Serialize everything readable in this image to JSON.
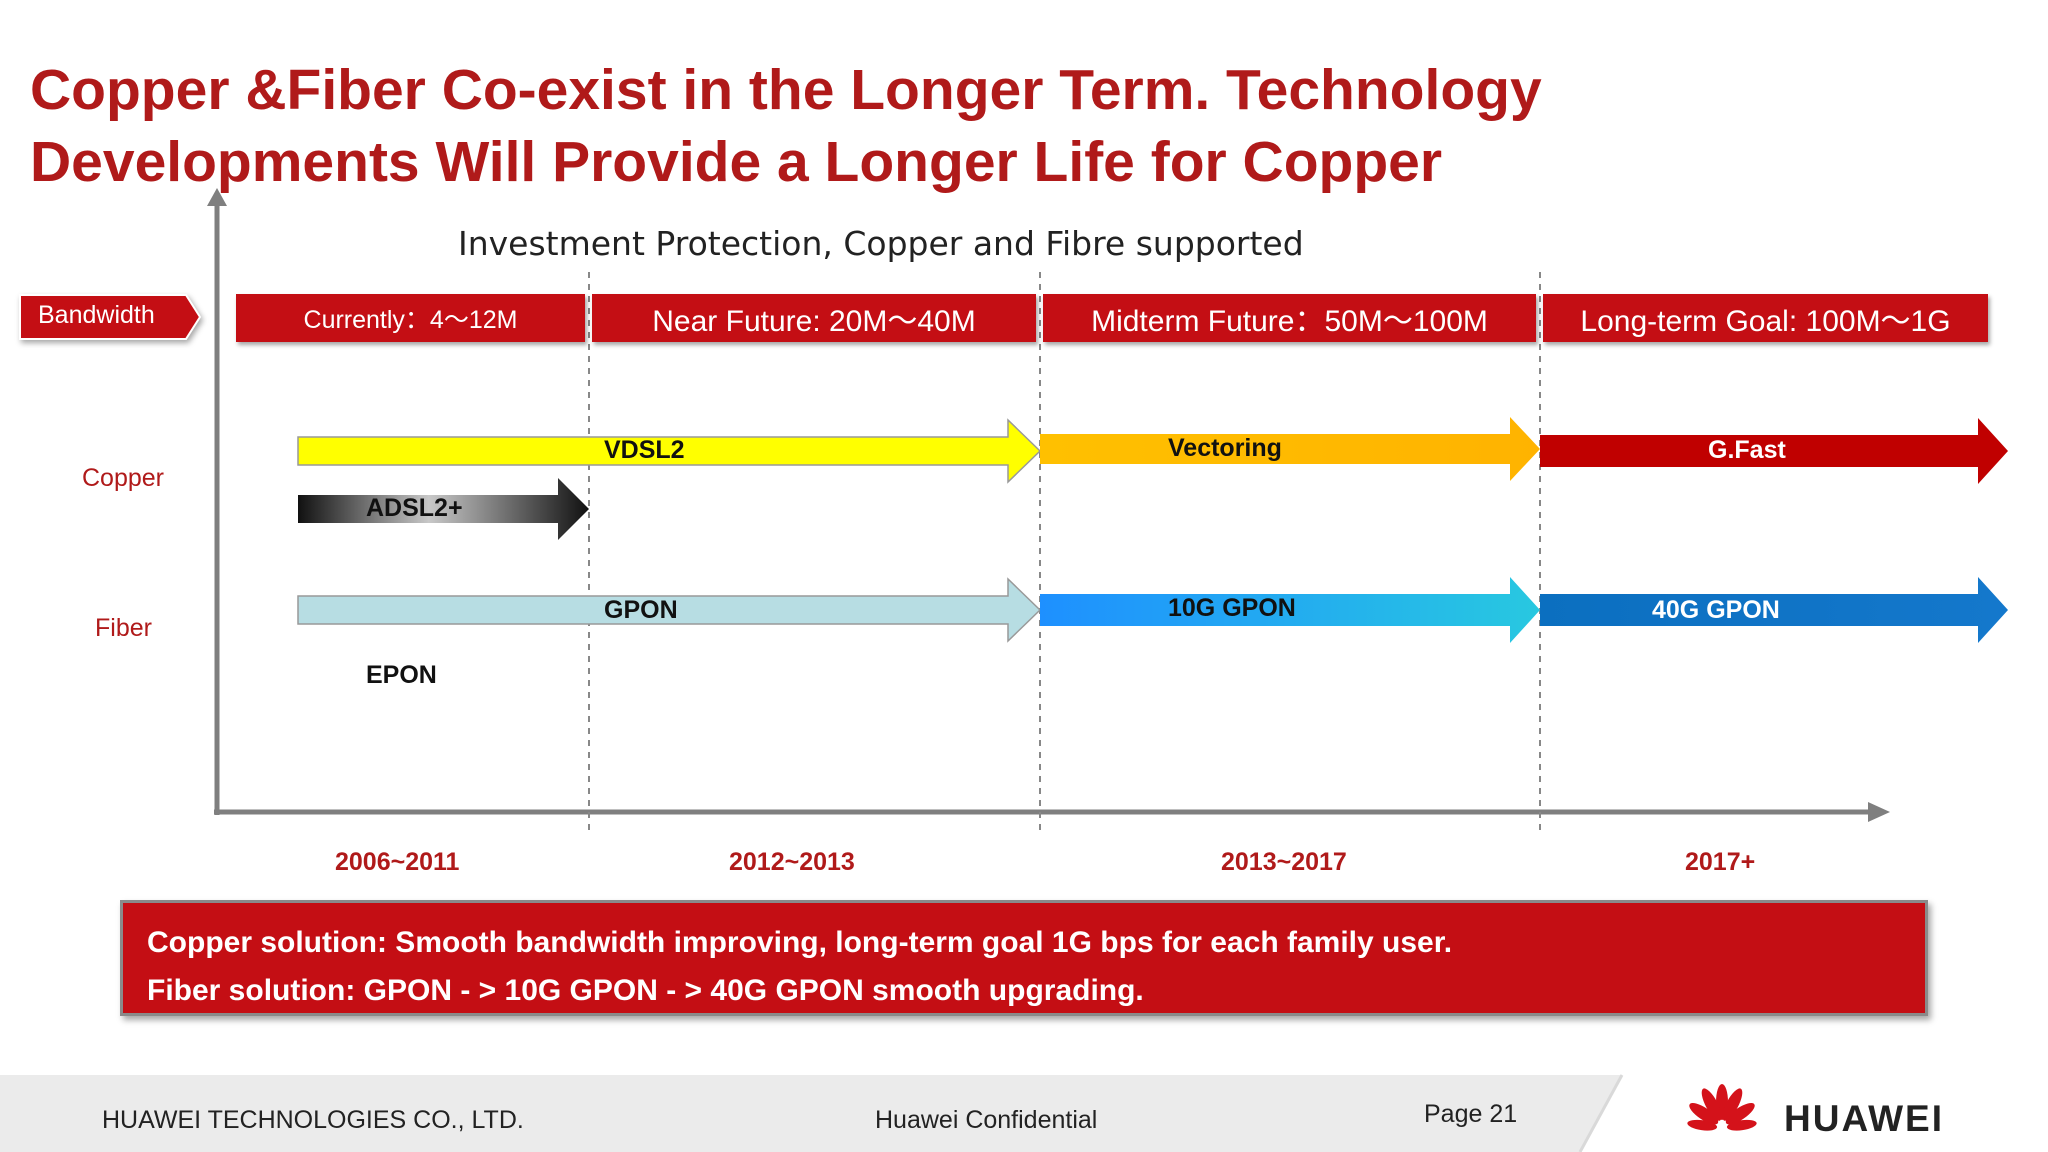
{
  "title_line1": "Copper &Fiber Co-exist in the Longer Term. Technology",
  "title_line2": "Developments Will Provide a Longer Life for Copper",
  "subtitle": "Investment Protection, Copper and Fibre supported",
  "bandwidth_label": "Bandwidth",
  "periods": [
    {
      "label": "Currently：4～12M"
    },
    {
      "label": "Near Future: 20M～40M"
    },
    {
      "label": "Midterm Future：50M～100M"
    },
    {
      "label": "Long-term Goal: 100M～1G"
    }
  ],
  "rows": {
    "copper": "Copper",
    "fiber": "Fiber"
  },
  "technologies": {
    "vdsl2": "VDSL2",
    "vectoring": "Vectoring",
    "gfast": "G.Fast",
    "adsl2": "ADSL2+",
    "gpon": "GPON",
    "gpon10g": "10G GPON",
    "gpon40g": "40G GPON",
    "epon": "EPON"
  },
  "years": [
    "2006~2011",
    "2012~2013",
    "2013~2017",
    "2017+"
  ],
  "banner": {
    "line1": "Copper solution:  Smooth bandwidth improving, long-term goal 1G bps for each family user.",
    "line2": "Fiber solution:  GPON - >  10G  GPON   - > 40G GPON smooth upgrading."
  },
  "footer": {
    "company": "HUAWEI TECHNOLOGIES CO., LTD.",
    "confidential": "Huawei Confidential",
    "page": "Page 21",
    "brand": "HUAWEI"
  },
  "colors": {
    "title": "#b01a1a",
    "accent_red": "#c40e14",
    "vdsl2": "#ffff00",
    "vectoring": "#ffc000",
    "gfast": "#c00000",
    "gpon": "#b7dde3",
    "gpon10g": "#00a8e8",
    "gpon40g": "#0070c0"
  }
}
